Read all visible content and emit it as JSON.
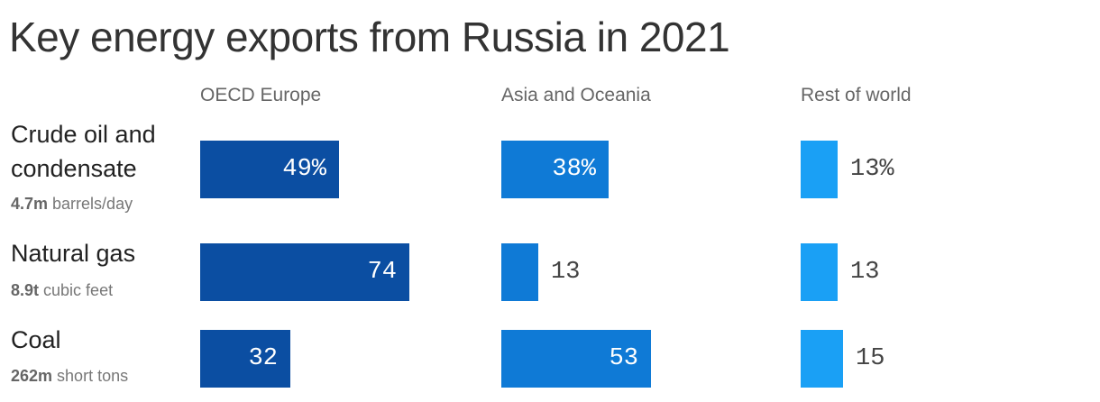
{
  "title": "Key energy exports from Russia in 2021",
  "colors": {
    "oecd_europe": "#0b4ea2",
    "asia_oceania": "#0f7ad6",
    "rest_of_world": "#1aa0f5"
  },
  "chart_data": {
    "type": "bar",
    "title": "Key energy exports from Russia in 2021",
    "columns": [
      "OECD Europe",
      "Asia and Oceania",
      "Rest of world"
    ],
    "rows": [
      {
        "label": "Crude oil and condensate",
        "sub_value": "4.7m",
        "sub_unit": "barrels/day",
        "values": [
          49,
          38,
          13
        ],
        "display": [
          "49%",
          "38%",
          "13%"
        ]
      },
      {
        "label": "Natural gas",
        "sub_value": "8.9t",
        "sub_unit": "cubic feet",
        "values": [
          74,
          13,
          13
        ],
        "display": [
          "74",
          "13",
          "13"
        ]
      },
      {
        "label": "Coal",
        "sub_value": "262m",
        "sub_unit": "short tons",
        "values": [
          32,
          53,
          15
        ],
        "display": [
          "32",
          "53",
          "15"
        ]
      }
    ]
  }
}
